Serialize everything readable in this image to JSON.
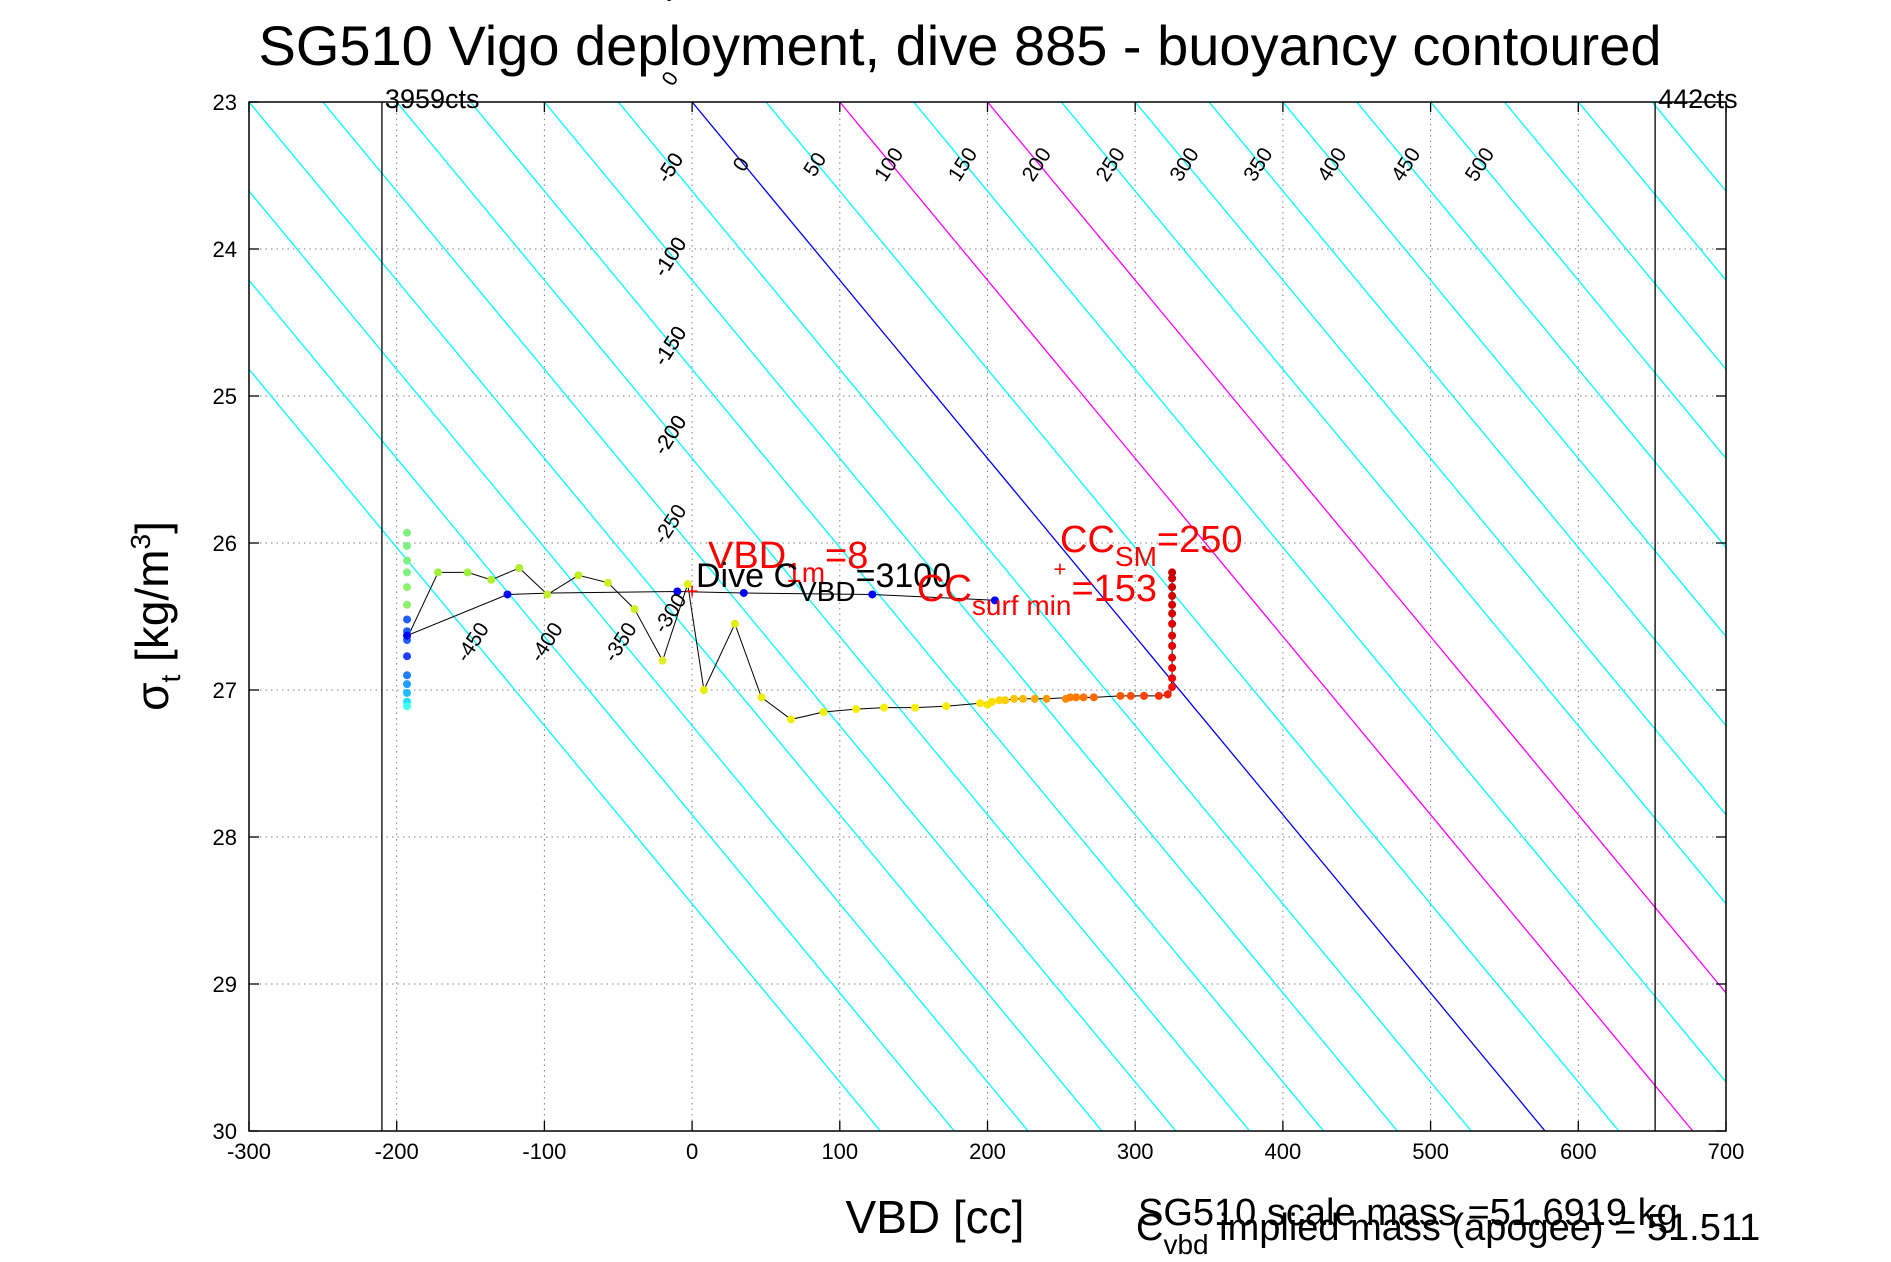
{
  "chart_data": {
    "type": "scatter",
    "title": "SG510 Vigo deployment, dive 885 - buoyancy contoured",
    "xlabel": "VBD [cc]",
    "ylabel": {
      "main": "σ",
      "sub": "t",
      "rest": " [kg/m",
      "sup": "3",
      "close": "]"
    },
    "xlim": [
      -300,
      700
    ],
    "ylim": [
      30,
      23
    ],
    "y_inverted": true,
    "grid": "dotted",
    "x_ticks": [
      -300,
      -200,
      -100,
      0,
      100,
      200,
      300,
      400,
      500,
      600,
      700
    ],
    "x_tick_labels": [
      "-300",
      "-200",
      "-100",
      "0",
      "100",
      "200",
      "300",
      "400",
      "500",
      "600",
      "700"
    ],
    "y_ticks": [
      23,
      24,
      25,
      26,
      27,
      28,
      29,
      30
    ],
    "y_tick_labels": [
      "23",
      "24",
      "25",
      "26",
      "27",
      "28",
      "29",
      "30"
    ],
    "limit_lines": [
      {
        "x": -210,
        "label": "3959cts"
      },
      {
        "x": 652,
        "label": "442cts"
      }
    ],
    "contour_slope": 82.5,
    "contours": [
      -450,
      -400,
      -350,
      -300,
      -250,
      -200,
      -150,
      -100,
      -50,
      0,
      50,
      100,
      150,
      200,
      250,
      300,
      350,
      400,
      450,
      500,
      550,
      600,
      650,
      700,
      750,
      800,
      850,
      900
    ],
    "contour_colors": {
      "default": "#00ffff",
      "zero": "#0000ff",
      "highlight": "#ff00ff"
    },
    "highlight_contours": [
      100,
      200
    ],
    "contour_labels_top": [
      {
        "value": -450,
        "label": "-450"
      },
      {
        "value": -400,
        "label": "-400"
      },
      {
        "value": -350,
        "label": "-350"
      },
      {
        "value": -300,
        "label": "-300"
      },
      {
        "value": -250,
        "label": "-250"
      },
      {
        "value": -200,
        "label": "-200"
      },
      {
        "value": -150,
        "label": "-150"
      },
      {
        "value": -100,
        "label": "-100"
      },
      {
        "value": -50,
        "label": "-50"
      },
      {
        "value": 0,
        "label": "0"
      },
      {
        "value": 50,
        "label": "50"
      },
      {
        "value": 100,
        "label": "100"
      },
      {
        "value": 150,
        "label": "150"
      },
      {
        "value": 200,
        "label": "200"
      },
      {
        "value": 250,
        "label": "250"
      },
      {
        "value": 300,
        "label": "300"
      },
      {
        "value": 350,
        "label": "350"
      },
      {
        "value": 400,
        "label": "400"
      },
      {
        "value": 450,
        "label": "450"
      },
      {
        "value": 500,
        "label": "500"
      }
    ],
    "contour_labels_bottom": [
      {
        "value": -200,
        "label": "-200"
      },
      {
        "value": -150,
        "label": "-150"
      },
      {
        "value": -100,
        "label": "-100"
      },
      {
        "value": -50,
        "label": "-50"
      },
      {
        "value": 0,
        "label": "0"
      },
      {
        "value": 50,
        "label": "50"
      },
      {
        "value": 100,
        "label": "100"
      },
      {
        "value": 150,
        "label": "150"
      },
      {
        "value": 200,
        "label": "200"
      },
      {
        "value": 250,
        "label": "250"
      },
      {
        "value": 300,
        "label": "300"
      },
      {
        "value": 350,
        "label": "350"
      },
      {
        "value": 400,
        "label": "400"
      },
      {
        "value": 450,
        "label": "450"
      },
      {
        "value": 500,
        "label": "500"
      }
    ],
    "trace_color": "#000000",
    "trace": [
      [
        -193,
        26.65
      ],
      [
        -172,
        26.2
      ],
      [
        -152,
        26.2
      ],
      [
        -136,
        26.25
      ],
      [
        -117,
        26.17
      ],
      [
        -98,
        26.35
      ],
      [
        -77,
        26.22
      ],
      [
        -57,
        26.27
      ],
      [
        -39,
        26.45
      ],
      [
        -20,
        26.8
      ],
      [
        -3,
        26.28
      ],
      [
        8,
        27.0
      ],
      [
        29,
        26.55
      ],
      [
        47,
        27.05
      ],
      [
        67,
        27.2
      ],
      [
        89,
        27.15
      ],
      [
        111,
        27.13
      ],
      [
        130,
        27.12
      ],
      [
        151,
        27.12
      ],
      [
        172,
        27.11
      ],
      [
        195,
        27.09
      ],
      [
        203,
        27.08
      ],
      [
        210,
        27.07
      ],
      [
        221,
        27.06
      ],
      [
        240,
        27.06
      ],
      [
        258,
        27.05
      ],
      [
        272,
        27.05
      ],
      [
        290,
        27.04
      ],
      [
        306,
        27.04
      ],
      [
        316,
        27.04
      ],
      [
        324,
        27.03
      ],
      [
        325,
        26.9
      ],
      [
        325,
        26.8
      ],
      [
        325,
        26.65
      ],
      [
        325,
        26.5
      ],
      [
        325,
        26.35
      ],
      [
        325,
        26.25
      ],
      [
        325,
        26.18
      ]
    ],
    "ascent_trace": [
      [
        -193,
        26.63
      ],
      [
        -125,
        26.35
      ],
      [
        -95,
        26.34
      ],
      [
        -10,
        26.33
      ],
      [
        35,
        26.34
      ],
      [
        122,
        26.35
      ],
      [
        205,
        26.39
      ]
    ],
    "descent_points": [
      {
        "x": -193,
        "y": 25.93,
        "color": "#7ff07f"
      },
      {
        "x": -193,
        "y": 26.02,
        "color": "#7ff07f"
      },
      {
        "x": -193,
        "y": 26.12,
        "color": "#7ff07f"
      },
      {
        "x": -193,
        "y": 26.2,
        "color": "#7ff07f"
      },
      {
        "x": -193,
        "y": 26.3,
        "color": "#8ff06f"
      },
      {
        "x": -193,
        "y": 26.42,
        "color": "#8ff06f"
      },
      {
        "x": -193,
        "y": 26.52,
        "color": "#1f5fff"
      },
      {
        "x": -193,
        "y": 26.6,
        "color": "#1f5fff"
      },
      {
        "x": -193,
        "y": 26.66,
        "color": "#2060ff"
      },
      {
        "x": -193,
        "y": 26.77,
        "color": "#1f3fff"
      },
      {
        "x": -193,
        "y": 26.9,
        "color": "#1f7fff"
      },
      {
        "x": -193,
        "y": 26.96,
        "color": "#1f9fff"
      },
      {
        "x": -193,
        "y": 27.02,
        "color": "#1fbfff"
      },
      {
        "x": -193,
        "y": 27.08,
        "color": "#1fdfff"
      },
      {
        "x": -193,
        "y": 27.11,
        "color": "#3ffff0"
      },
      {
        "x": -172,
        "y": 26.2,
        "color": "#9fef3f"
      },
      {
        "x": -152,
        "y": 26.2,
        "color": "#9fef3f"
      },
      {
        "x": -136,
        "y": 26.25,
        "color": "#afef2f"
      },
      {
        "x": -117,
        "y": 26.17,
        "color": "#afef2f"
      },
      {
        "x": -98,
        "y": 26.35,
        "color": "#bfef2f"
      },
      {
        "x": -77,
        "y": 26.22,
        "color": "#bfef1f"
      },
      {
        "x": -57,
        "y": 26.27,
        "color": "#cfef1f"
      },
      {
        "x": -39,
        "y": 26.45,
        "color": "#cfef1f"
      },
      {
        "x": -20,
        "y": 26.8,
        "color": "#dfef1f"
      },
      {
        "x": -3,
        "y": 26.28,
        "color": "#dfef0f"
      },
      {
        "x": 8,
        "y": 27.0,
        "color": "#e5ef0f"
      },
      {
        "x": 29,
        "y": 26.55,
        "color": "#e5ef0f"
      },
      {
        "x": 47,
        "y": 27.05,
        "color": "#efef0f"
      },
      {
        "x": 67,
        "y": 27.2,
        "color": "#efef00"
      },
      {
        "x": 89,
        "y": 27.15,
        "color": "#f0f000"
      },
      {
        "x": 111,
        "y": 27.13,
        "color": "#f5f000"
      },
      {
        "x": 130,
        "y": 27.12,
        "color": "#f5ef00"
      },
      {
        "x": 151,
        "y": 27.12,
        "color": "#f8ef00"
      },
      {
        "x": 172,
        "y": 27.11,
        "color": "#f8ec00"
      },
      {
        "x": 195,
        "y": 27.09,
        "color": "#fbe800"
      },
      {
        "x": 200,
        "y": 27.1,
        "color": "#fbe400"
      },
      {
        "x": 203,
        "y": 27.08,
        "color": "#fbe000"
      },
      {
        "x": 208,
        "y": 27.07,
        "color": "#fcd800"
      },
      {
        "x": 212,
        "y": 27.07,
        "color": "#fcd000"
      },
      {
        "x": 218,
        "y": 27.06,
        "color": "#fdc400"
      },
      {
        "x": 224,
        "y": 27.06,
        "color": "#fdb800"
      },
      {
        "x": 232,
        "y": 27.06,
        "color": "#fda800"
      },
      {
        "x": 240,
        "y": 27.06,
        "color": "#fe9800"
      },
      {
        "x": 253,
        "y": 27.06,
        "color": "#fe8800"
      },
      {
        "x": 256,
        "y": 27.05,
        "color": "#fe8000"
      },
      {
        "x": 260,
        "y": 27.05,
        "color": "#fe7800"
      },
      {
        "x": 265,
        "y": 27.05,
        "color": "#fe7000"
      },
      {
        "x": 272,
        "y": 27.05,
        "color": "#fe6800"
      },
      {
        "x": 290,
        "y": 27.04,
        "color": "#ff5800"
      },
      {
        "x": 297,
        "y": 27.04,
        "color": "#ff5000"
      },
      {
        "x": 306,
        "y": 27.04,
        "color": "#ff4000"
      },
      {
        "x": 316,
        "y": 27.04,
        "color": "#ff3000"
      },
      {
        "x": 322,
        "y": 27.03,
        "color": "#ff2000"
      },
      {
        "x": 325,
        "y": 26.98,
        "color": "#ff1000"
      },
      {
        "x": 325,
        "y": 26.92,
        "color": "#f00000"
      },
      {
        "x": 325,
        "y": 26.85,
        "color": "#f00000"
      },
      {
        "x": 325,
        "y": 26.78,
        "color": "#e80000"
      },
      {
        "x": 325,
        "y": 26.7,
        "color": "#e80000"
      },
      {
        "x": 325,
        "y": 26.63,
        "color": "#e00000"
      },
      {
        "x": 325,
        "y": 26.55,
        "color": "#e00000"
      },
      {
        "x": 325,
        "y": 26.48,
        "color": "#d80000"
      },
      {
        "x": 325,
        "y": 26.42,
        "color": "#d80000"
      },
      {
        "x": 325,
        "y": 26.36,
        "color": "#d00000"
      },
      {
        "x": 325,
        "y": 26.3,
        "color": "#d00000"
      },
      {
        "x": 325,
        "y": 26.24,
        "color": "#c80000"
      },
      {
        "x": 325,
        "y": 26.2,
        "color": "#c80000"
      }
    ],
    "ascent_points": [
      {
        "x": -193,
        "y": 26.63,
        "color": "#0000ff"
      },
      {
        "x": -125,
        "y": 26.35,
        "color": "#0000ff"
      },
      {
        "x": -10,
        "y": 26.33,
        "color": "#0000ff"
      },
      {
        "x": 35,
        "y": 26.34,
        "color": "#0000ff"
      },
      {
        "x": 122,
        "y": 26.35,
        "color": "#0000ff"
      },
      {
        "x": 205,
        "y": 26.39,
        "color": "#0000ff"
      }
    ],
    "markers": [
      {
        "x": 0,
        "y": 26.33,
        "symbol": "+",
        "color": "#ff0000"
      },
      {
        "x": 249,
        "y": 26.18,
        "symbol": "+",
        "color": "#ff0000"
      }
    ],
    "annotations": {
      "vbd_1m": {
        "main": "VBD",
        "sub": "1m",
        "rest": "=8",
        "color": "#ff0000"
      },
      "dive_c_vbd": {
        "main": "Dive C",
        "sub": "VBD",
        "rest": "=3100",
        "color": "#000000"
      },
      "cc_sm": {
        "main": "CC",
        "sub": "SM",
        "rest": "=250",
        "color": "#ff0000"
      },
      "cc_surf_min": {
        "main": "CC",
        "sub": "surf min",
        "rest": "=153",
        "color": "#ff0000"
      }
    },
    "footer": {
      "scale_mass": "SG510 scale mass =51.6919 kg",
      "implied_mass_main": "C",
      "implied_mass_sub": "vbd",
      "implied_mass_rest": " implied mass (apogee) = 51.511"
    }
  }
}
